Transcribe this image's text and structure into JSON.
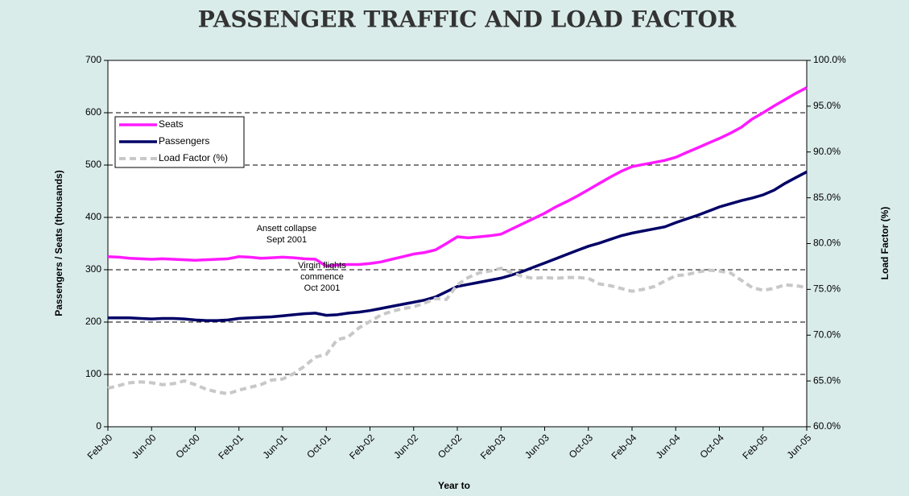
{
  "chart_data": {
    "type": "line",
    "title": "PASSENGER TRAFFIC AND LOAD FACTOR",
    "xlabel": "Year to",
    "ylabel": "Passengers / Seats  (thousands)",
    "y2label": "Load Factor (%)",
    "categories": [
      "Feb-00",
      null,
      null,
      null,
      "Jun-00",
      null,
      null,
      null,
      "Oct-00",
      null,
      null,
      null,
      "Feb-01",
      null,
      null,
      null,
      "Jun-01",
      null,
      null,
      null,
      "Oct-01",
      null,
      null,
      null,
      "Feb-02",
      null,
      null,
      null,
      "Jun-02",
      null,
      null,
      null,
      "Oct-02",
      null,
      null,
      null,
      "Feb-03",
      null,
      null,
      null,
      "Jun-03",
      null,
      null,
      null,
      "Oct-03",
      null,
      null,
      null,
      "Feb-04",
      null,
      null,
      null,
      "Jun-04",
      null,
      null,
      null,
      "Oct-04",
      null,
      null,
      null,
      "Feb-05",
      null,
      null,
      null,
      "Jun-05"
    ],
    "series": [
      {
        "name": "Seats",
        "color": "#ff1aff",
        "values": [
          325,
          324,
          322,
          321,
          320,
          321,
          320,
          319,
          318,
          319,
          320,
          321,
          325,
          324,
          322,
          323,
          324,
          323,
          321,
          320,
          307,
          309,
          310,
          310,
          312,
          315,
          320,
          325,
          330,
          333,
          338,
          350,
          363,
          361,
          363,
          365,
          368,
          378,
          388,
          398,
          408,
          420,
          430,
          441,
          453,
          465,
          477,
          488,
          497,
          501,
          505,
          509,
          515,
          524,
          533,
          542,
          551,
          561,
          572,
          588,
          600,
          613,
          625,
          637,
          648
        ]
      },
      {
        "name": "Passengers",
        "color": "#000066",
        "values": [
          208,
          208,
          208,
          207,
          206,
          207,
          207,
          206,
          204,
          203,
          203,
          204,
          207,
          208,
          209,
          210,
          212,
          214,
          216,
          217,
          213,
          214,
          217,
          219,
          222,
          226,
          230,
          234,
          238,
          242,
          248,
          258,
          268,
          272,
          276,
          280,
          284,
          290,
          297,
          305,
          313,
          321,
          329,
          337,
          345,
          351,
          358,
          365,
          370,
          374,
          378,
          382,
          390,
          397,
          404,
          412,
          420,
          426,
          432,
          437,
          443,
          452,
          465,
          476,
          487
        ]
      },
      {
        "name": "Load Factor (%)",
        "color": "#c8c8c8",
        "axis": "y2",
        "dashed": true,
        "values": [
          64.2,
          64.5,
          64.8,
          64.9,
          64.8,
          64.6,
          64.7,
          65.0,
          64.6,
          64.1,
          63.8,
          63.6,
          64.0,
          64.3,
          64.6,
          65.1,
          65.2,
          65.8,
          66.6,
          67.6,
          67.9,
          69.5,
          69.8,
          70.8,
          71.5,
          72.2,
          72.6,
          72.9,
          73.1,
          73.5,
          74.0,
          73.9,
          75.5,
          76.3,
          76.8,
          77.0,
          77.3,
          76.8,
          76.4,
          76.2,
          76.3,
          76.2,
          76.3,
          76.3,
          76.2,
          75.6,
          75.4,
          75.1,
          74.8,
          75.0,
          75.3,
          75.9,
          76.5,
          76.6,
          76.9,
          77.1,
          77.0,
          76.8,
          76.0,
          75.2,
          74.9,
          75.1,
          75.5,
          75.4,
          75.2
        ]
      }
    ],
    "ylim": [
      0,
      700
    ],
    "yticks": [
      0,
      100,
      200,
      300,
      400,
      500,
      600,
      700
    ],
    "y2lim": [
      60,
      100
    ],
    "y2ticks": [
      {
        "value": 60,
        "label": "60.0%"
      },
      {
        "value": 65,
        "label": "65.0%"
      },
      {
        "value": 70,
        "label": "70.0%"
      },
      {
        "value": 75,
        "label": "75.0%"
      },
      {
        "value": 80,
        "label": "80.0%"
      },
      {
        "value": 85,
        "label": "85.0%"
      },
      {
        "value": 90,
        "label": "90.0%"
      },
      {
        "value": 95,
        "label": "95.0%"
      },
      {
        "value": 100,
        "label": "100.0%"
      }
    ],
    "grid": true,
    "legend": "upper left",
    "annotations": [
      {
        "lines": [
          "Ansett collapse",
          "Sept 2001"
        ]
      },
      {
        "lines": [
          "Virgin flights",
          "commence",
          "Oct 2001"
        ]
      }
    ]
  }
}
